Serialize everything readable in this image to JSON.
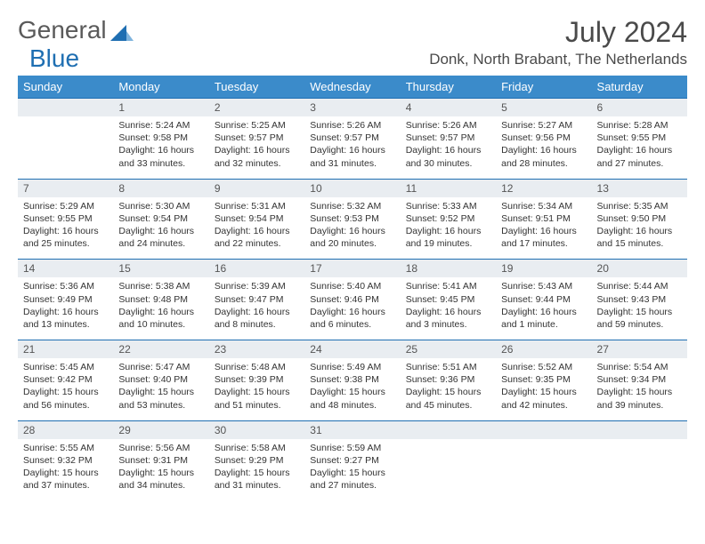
{
  "brand": {
    "general": "General",
    "blue": "Blue"
  },
  "title": "July 2024",
  "location": "Donk, North Brabant, The Netherlands",
  "day_headers": [
    "Sunday",
    "Monday",
    "Tuesday",
    "Wednesday",
    "Thursday",
    "Friday",
    "Saturday"
  ],
  "colors": {
    "header_bg": "#3b8bca",
    "row_bg": "#e9edf1",
    "row_border": "#1f6fb2",
    "logo_blue": "#1f6fb2"
  },
  "start_offset": 1,
  "days": [
    {
      "n": "1",
      "sunrise": "5:24 AM",
      "sunset": "9:58 PM",
      "daylight": "16 hours and 33 minutes."
    },
    {
      "n": "2",
      "sunrise": "5:25 AM",
      "sunset": "9:57 PM",
      "daylight": "16 hours and 32 minutes."
    },
    {
      "n": "3",
      "sunrise": "5:26 AM",
      "sunset": "9:57 PM",
      "daylight": "16 hours and 31 minutes."
    },
    {
      "n": "4",
      "sunrise": "5:26 AM",
      "sunset": "9:57 PM",
      "daylight": "16 hours and 30 minutes."
    },
    {
      "n": "5",
      "sunrise": "5:27 AM",
      "sunset": "9:56 PM",
      "daylight": "16 hours and 28 minutes."
    },
    {
      "n": "6",
      "sunrise": "5:28 AM",
      "sunset": "9:55 PM",
      "daylight": "16 hours and 27 minutes."
    },
    {
      "n": "7",
      "sunrise": "5:29 AM",
      "sunset": "9:55 PM",
      "daylight": "16 hours and 25 minutes."
    },
    {
      "n": "8",
      "sunrise": "5:30 AM",
      "sunset": "9:54 PM",
      "daylight": "16 hours and 24 minutes."
    },
    {
      "n": "9",
      "sunrise": "5:31 AM",
      "sunset": "9:54 PM",
      "daylight": "16 hours and 22 minutes."
    },
    {
      "n": "10",
      "sunrise": "5:32 AM",
      "sunset": "9:53 PM",
      "daylight": "16 hours and 20 minutes."
    },
    {
      "n": "11",
      "sunrise": "5:33 AM",
      "sunset": "9:52 PM",
      "daylight": "16 hours and 19 minutes."
    },
    {
      "n": "12",
      "sunrise": "5:34 AM",
      "sunset": "9:51 PM",
      "daylight": "16 hours and 17 minutes."
    },
    {
      "n": "13",
      "sunrise": "5:35 AM",
      "sunset": "9:50 PM",
      "daylight": "16 hours and 15 minutes."
    },
    {
      "n": "14",
      "sunrise": "5:36 AM",
      "sunset": "9:49 PM",
      "daylight": "16 hours and 13 minutes."
    },
    {
      "n": "15",
      "sunrise": "5:38 AM",
      "sunset": "9:48 PM",
      "daylight": "16 hours and 10 minutes."
    },
    {
      "n": "16",
      "sunrise": "5:39 AM",
      "sunset": "9:47 PM",
      "daylight": "16 hours and 8 minutes."
    },
    {
      "n": "17",
      "sunrise": "5:40 AM",
      "sunset": "9:46 PM",
      "daylight": "16 hours and 6 minutes."
    },
    {
      "n": "18",
      "sunrise": "5:41 AM",
      "sunset": "9:45 PM",
      "daylight": "16 hours and 3 minutes."
    },
    {
      "n": "19",
      "sunrise": "5:43 AM",
      "sunset": "9:44 PM",
      "daylight": "16 hours and 1 minute."
    },
    {
      "n": "20",
      "sunrise": "5:44 AM",
      "sunset": "9:43 PM",
      "daylight": "15 hours and 59 minutes."
    },
    {
      "n": "21",
      "sunrise": "5:45 AM",
      "sunset": "9:42 PM",
      "daylight": "15 hours and 56 minutes."
    },
    {
      "n": "22",
      "sunrise": "5:47 AM",
      "sunset": "9:40 PM",
      "daylight": "15 hours and 53 minutes."
    },
    {
      "n": "23",
      "sunrise": "5:48 AM",
      "sunset": "9:39 PM",
      "daylight": "15 hours and 51 minutes."
    },
    {
      "n": "24",
      "sunrise": "5:49 AM",
      "sunset": "9:38 PM",
      "daylight": "15 hours and 48 minutes."
    },
    {
      "n": "25",
      "sunrise": "5:51 AM",
      "sunset": "9:36 PM",
      "daylight": "15 hours and 45 minutes."
    },
    {
      "n": "26",
      "sunrise": "5:52 AM",
      "sunset": "9:35 PM",
      "daylight": "15 hours and 42 minutes."
    },
    {
      "n": "27",
      "sunrise": "5:54 AM",
      "sunset": "9:34 PM",
      "daylight": "15 hours and 39 minutes."
    },
    {
      "n": "28",
      "sunrise": "5:55 AM",
      "sunset": "9:32 PM",
      "daylight": "15 hours and 37 minutes."
    },
    {
      "n": "29",
      "sunrise": "5:56 AM",
      "sunset": "9:31 PM",
      "daylight": "15 hours and 34 minutes."
    },
    {
      "n": "30",
      "sunrise": "5:58 AM",
      "sunset": "9:29 PM",
      "daylight": "15 hours and 31 minutes."
    },
    {
      "n": "31",
      "sunrise": "5:59 AM",
      "sunset": "9:27 PM",
      "daylight": "15 hours and 27 minutes."
    }
  ],
  "labels": {
    "sunrise": "Sunrise:",
    "sunset": "Sunset:",
    "daylight": "Daylight:"
  }
}
